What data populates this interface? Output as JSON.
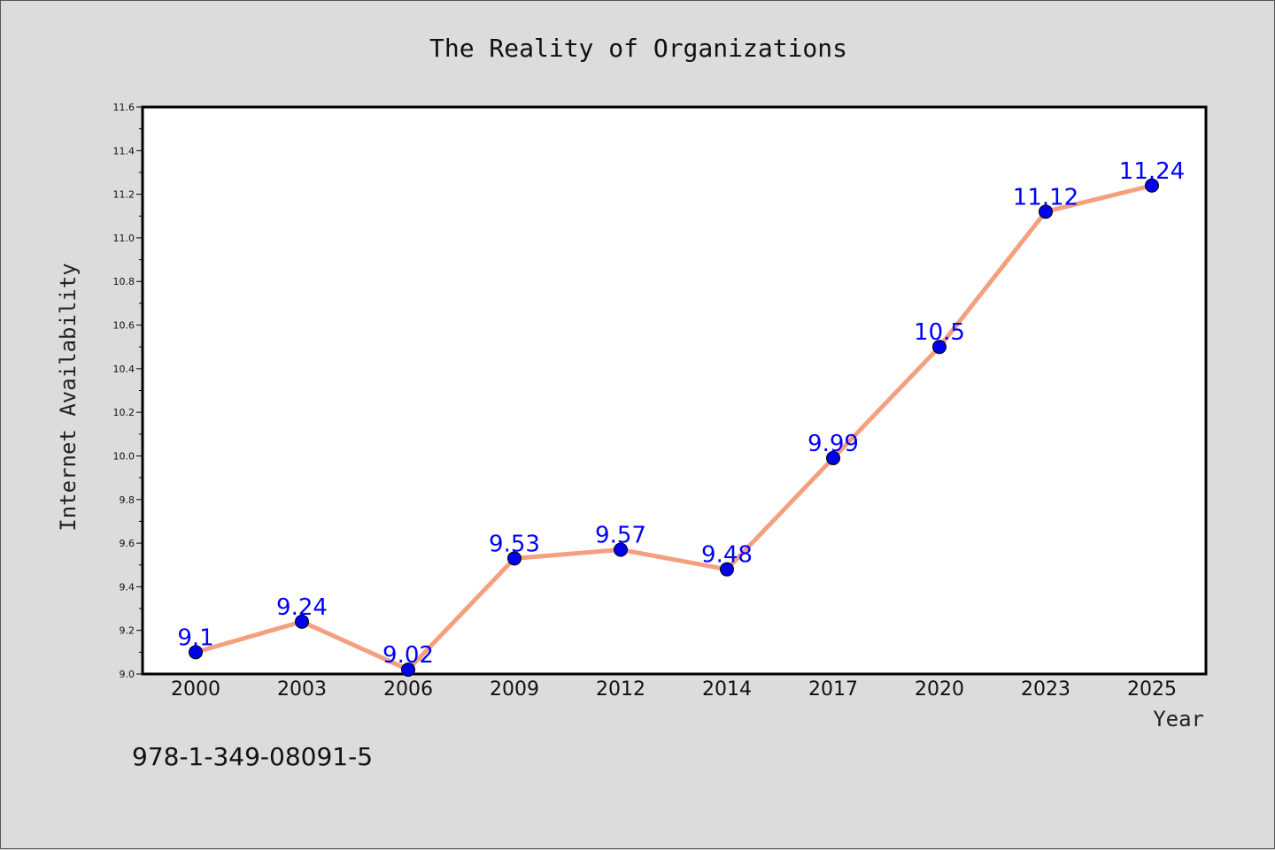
{
  "chart_data": {
    "type": "line",
    "title": "The Reality of Organizations",
    "xlabel": "Year",
    "ylabel": "Internet Availability",
    "categories": [
      "2000",
      "2003",
      "2006",
      "2009",
      "2012",
      "2014",
      "2017",
      "2020",
      "2023",
      "2025"
    ],
    "series": [
      {
        "values": [
          9.1,
          9.24,
          9.02,
          9.53,
          9.57,
          9.48,
          9.99,
          10.5,
          11.12,
          11.24
        ],
        "labels": [
          "9.1",
          "9.24",
          "9.02",
          "9.53",
          "9.57",
          "9.48",
          "9.99",
          "10.5",
          "11.12",
          "11.24"
        ],
        "line_color": "#f4a07f",
        "marker_color": "#0000ee"
      }
    ],
    "ylim": [
      9.0,
      11.6
    ],
    "yticks": [
      "9.0",
      "9.2",
      "9.4",
      "9.6",
      "9.8",
      "10.0",
      "10.2",
      "10.4",
      "10.6",
      "10.8",
      "11.0",
      "11.2",
      "11.4",
      "11.6"
    ],
    "grid": false,
    "label_color": "#0000ff"
  },
  "footer": {
    "isbn": "978-1-349-08091-5"
  }
}
